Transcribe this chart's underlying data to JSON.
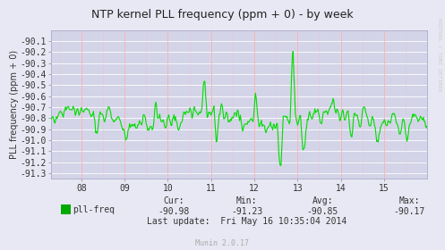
{
  "title": "NTP kernel PLL frequency (ppm + 0) - by week",
  "ylabel": "PLL frequency (ppm + 0)",
  "ylim": [
    -91.35,
    -90.0
  ],
  "yticks": [
    -90.1,
    -90.2,
    -90.3,
    -90.4,
    -90.5,
    -90.6,
    -90.7,
    -90.8,
    -90.9,
    -91.0,
    -91.1,
    -91.2,
    -91.3
  ],
  "xtick_positions": [
    8,
    9,
    10,
    11,
    12,
    13,
    14,
    15
  ],
  "xtick_labels": [
    "08",
    "09",
    "10",
    "11",
    "12",
    "13",
    "14",
    "15"
  ],
  "xlim": [
    7.3,
    16.0
  ],
  "bg_color": "#e8e8f4",
  "plot_bg_color": "#d4d4e8",
  "grid_h_color": "#ffffff",
  "grid_v_color": "#ffb0b0",
  "line_color": "#00dd00",
  "title_color": "#222222",
  "legend_label": "pll-freq",
  "legend_color": "#00aa00",
  "watermark": "RRDTOOL / TOBI OETIKER",
  "munin_text": "Munin 2.0.17",
  "stats_cur": "-90.98",
  "stats_min": "-91.23",
  "stats_avg": "-90.85",
  "stats_max": "-90.17",
  "last_update": "Last update:  Fri May 16 10:35:04 2014"
}
